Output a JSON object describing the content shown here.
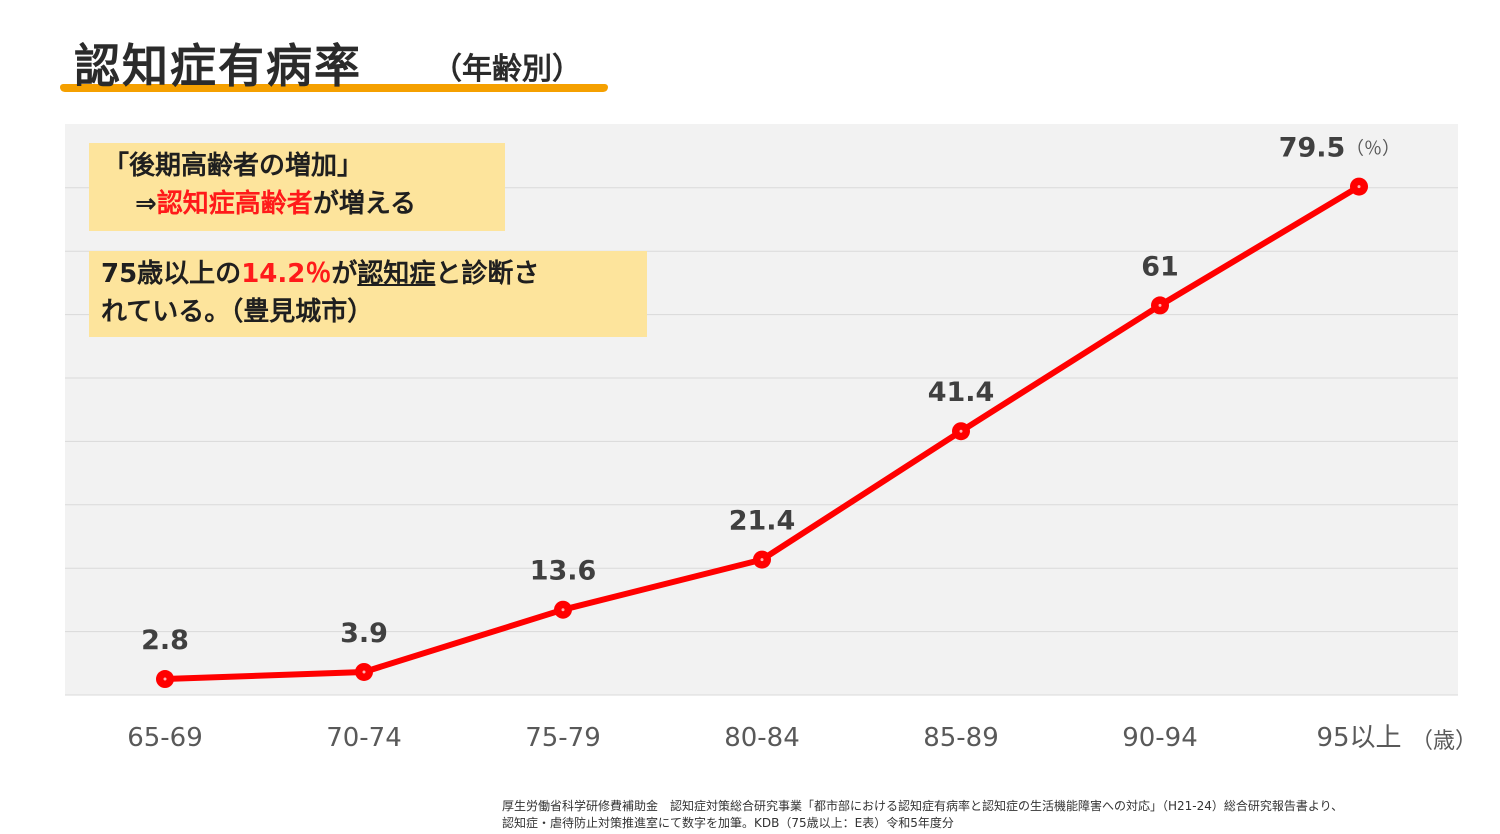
{
  "title": {
    "main": "認知症有病率",
    "sub": "（年齢別）"
  },
  "callouts": {
    "first": {
      "line1": "「後期高齢者の増加」",
      "arrow": "⇒",
      "emph": "認知症高齢者",
      "rest": "が増える"
    },
    "second": {
      "pre": "75歳以上の",
      "pct": "14.2％",
      "mid": "が",
      "ul": "認知症",
      "post": "と診断さ",
      "line2": "れている。（豊見城市）"
    }
  },
  "chart_data": {
    "type": "line",
    "categories": [
      "65-69",
      "70-74",
      "75-79",
      "80-84",
      "85-89",
      "90-94",
      "95以上"
    ],
    "series": [
      {
        "values": [
          2.8,
          3.9,
          13.6,
          21.4,
          41.4,
          61,
          79.5
        ]
      }
    ],
    "value_labels": [
      "2.8",
      "3.9",
      "13.6",
      "21.4",
      "41.4",
      "61",
      "79.5"
    ],
    "y_unit": "（％）",
    "x_unit": "（歳）",
    "ylim": [
      0,
      90
    ],
    "grid": true,
    "y_tick_labels_shown": false,
    "line_color": "#ff0000",
    "label_color": "#404040"
  },
  "source": {
    "line1": "厚生労働省科学研修費補助金　認知症対策総合研究事業「都市部における認知症有病率と認知症の生活機能障害への対応」（H21-24）総合研究報告書より、",
    "line2": "認知症・虐待防止対策推進室にて数字を加筆。KDB（75歳以上：E表）令和5年度分"
  }
}
